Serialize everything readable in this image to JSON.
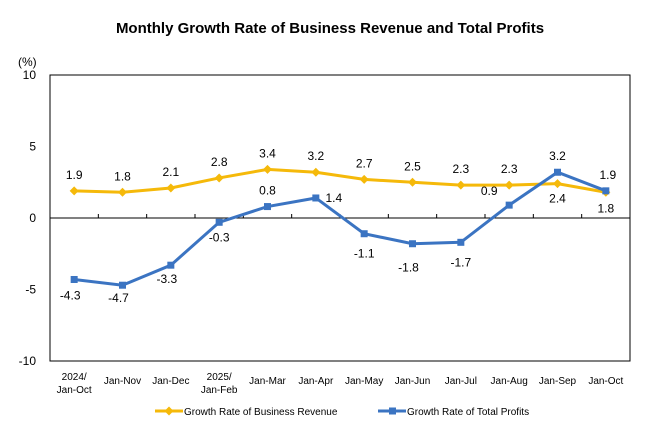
{
  "chart_data": {
    "type": "line",
    "title": "Monthly Growth Rate of Business Revenue and Total Profits",
    "ylabel": "(%)",
    "ylim": [
      -10,
      10
    ],
    "yticks": [
      "10",
      "5",
      "0",
      "-5",
      "-10"
    ],
    "yticks_values": [
      10,
      5,
      0,
      -5,
      -10
    ],
    "categories": [
      [
        "2024/",
        "Jan-Oct"
      ],
      [
        "Jan-Nov"
      ],
      [
        "Jan-Dec"
      ],
      [
        "2025/",
        "Jan-Feb"
      ],
      [
        "Jan-Mar"
      ],
      [
        "Jan-Apr"
      ],
      [
        "Jan-May"
      ],
      [
        "Jan-Jun"
      ],
      [
        "Jan-Jul"
      ],
      [
        "Jan-Aug"
      ],
      [
        "Jan-Sep"
      ],
      [
        "Jan-Oct"
      ]
    ],
    "grid": false,
    "legend_placement": "bottom",
    "series": [
      {
        "name": "Growth Rate of Business Revenue",
        "color": "#F5B90A",
        "marker": "diamond",
        "values": [
          1.9,
          1.8,
          2.1,
          2.8,
          3.4,
          3.2,
          2.7,
          2.5,
          2.3,
          2.3,
          2.4,
          1.8
        ]
      },
      {
        "name": "Growth Rate of Total Profits",
        "color": "#3B74C2",
        "marker": "square",
        "values": [
          -4.3,
          -4.7,
          -3.3,
          -0.3,
          0.8,
          1.4,
          -1.1,
          -1.8,
          -1.7,
          0.9,
          3.2,
          1.9
        ]
      }
    ]
  }
}
